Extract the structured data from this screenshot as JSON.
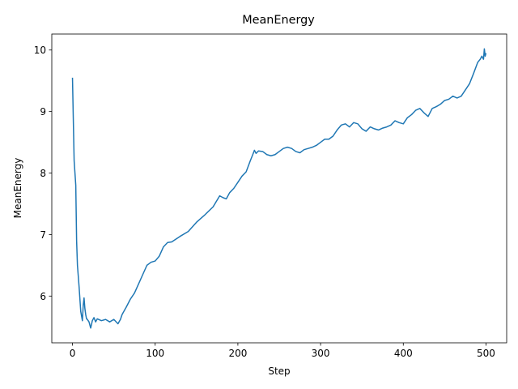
{
  "chart_data": {
    "type": "line",
    "title": "MeanEnergy",
    "xlabel": "Step",
    "ylabel": "MeanEnergy",
    "xlim": [
      -25,
      525
    ],
    "ylim": [
      5.24,
      10.26
    ],
    "xticks": [
      0,
      100,
      200,
      300,
      400,
      500
    ],
    "yticks": [
      6,
      7,
      8,
      9,
      10
    ],
    "grid": false,
    "legend": "none",
    "line_color": "#1f77b4",
    "series": [
      {
        "x": [
          0,
          2,
          4,
          5,
          6,
          8,
          10,
          12,
          13,
          14,
          15,
          16,
          17,
          18,
          20,
          22,
          24,
          26,
          28,
          30,
          35,
          40,
          45,
          50,
          55,
          58,
          60,
          65,
          70,
          75,
          80,
          85,
          90,
          95,
          100,
          105,
          110,
          115,
          120,
          130,
          140,
          150,
          160,
          170,
          178,
          182,
          186,
          190,
          195,
          200,
          205,
          210,
          215,
          218,
          220,
          222,
          225,
          230,
          235,
          240,
          245,
          250,
          255,
          260,
          265,
          270,
          275,
          280,
          285,
          290,
          295,
          300,
          305,
          310,
          315,
          320,
          325,
          330,
          335,
          340,
          345,
          350,
          355,
          360,
          365,
          370,
          375,
          380,
          385,
          390,
          395,
          400,
          405,
          410,
          415,
          420,
          425,
          430,
          435,
          440,
          445,
          450,
          455,
          460,
          465,
          470,
          475,
          480,
          485,
          490,
          493,
          495,
          497,
          498,
          499,
          500
        ],
        "y": [
          9.55,
          8.2,
          7.8,
          6.9,
          6.5,
          6.15,
          5.75,
          5.6,
          5.85,
          5.97,
          5.8,
          5.7,
          5.63,
          5.62,
          5.58,
          5.48,
          5.6,
          5.65,
          5.58,
          5.63,
          5.6,
          5.62,
          5.58,
          5.62,
          5.55,
          5.62,
          5.7,
          5.82,
          5.95,
          6.05,
          6.2,
          6.35,
          6.5,
          6.55,
          6.57,
          6.65,
          6.8,
          6.87,
          6.88,
          6.97,
          7.05,
          7.2,
          7.32,
          7.45,
          7.63,
          7.6,
          7.58,
          7.68,
          7.75,
          7.85,
          7.95,
          8.02,
          8.2,
          8.3,
          8.37,
          8.32,
          8.36,
          8.35,
          8.3,
          8.28,
          8.3,
          8.35,
          8.4,
          8.42,
          8.4,
          8.35,
          8.33,
          8.38,
          8.4,
          8.42,
          8.45,
          8.5,
          8.55,
          8.55,
          8.6,
          8.7,
          8.78,
          8.8,
          8.75,
          8.82,
          8.8,
          8.72,
          8.68,
          8.75,
          8.72,
          8.7,
          8.73,
          8.75,
          8.78,
          8.85,
          8.82,
          8.8,
          8.9,
          8.95,
          9.02,
          9.05,
          8.98,
          8.92,
          9.05,
          9.08,
          9.12,
          9.18,
          9.2,
          9.25,
          9.22,
          9.25,
          9.35,
          9.45,
          9.62,
          9.8,
          9.85,
          9.9,
          9.85,
          10.02,
          9.9,
          9.95
        ]
      }
    ]
  }
}
